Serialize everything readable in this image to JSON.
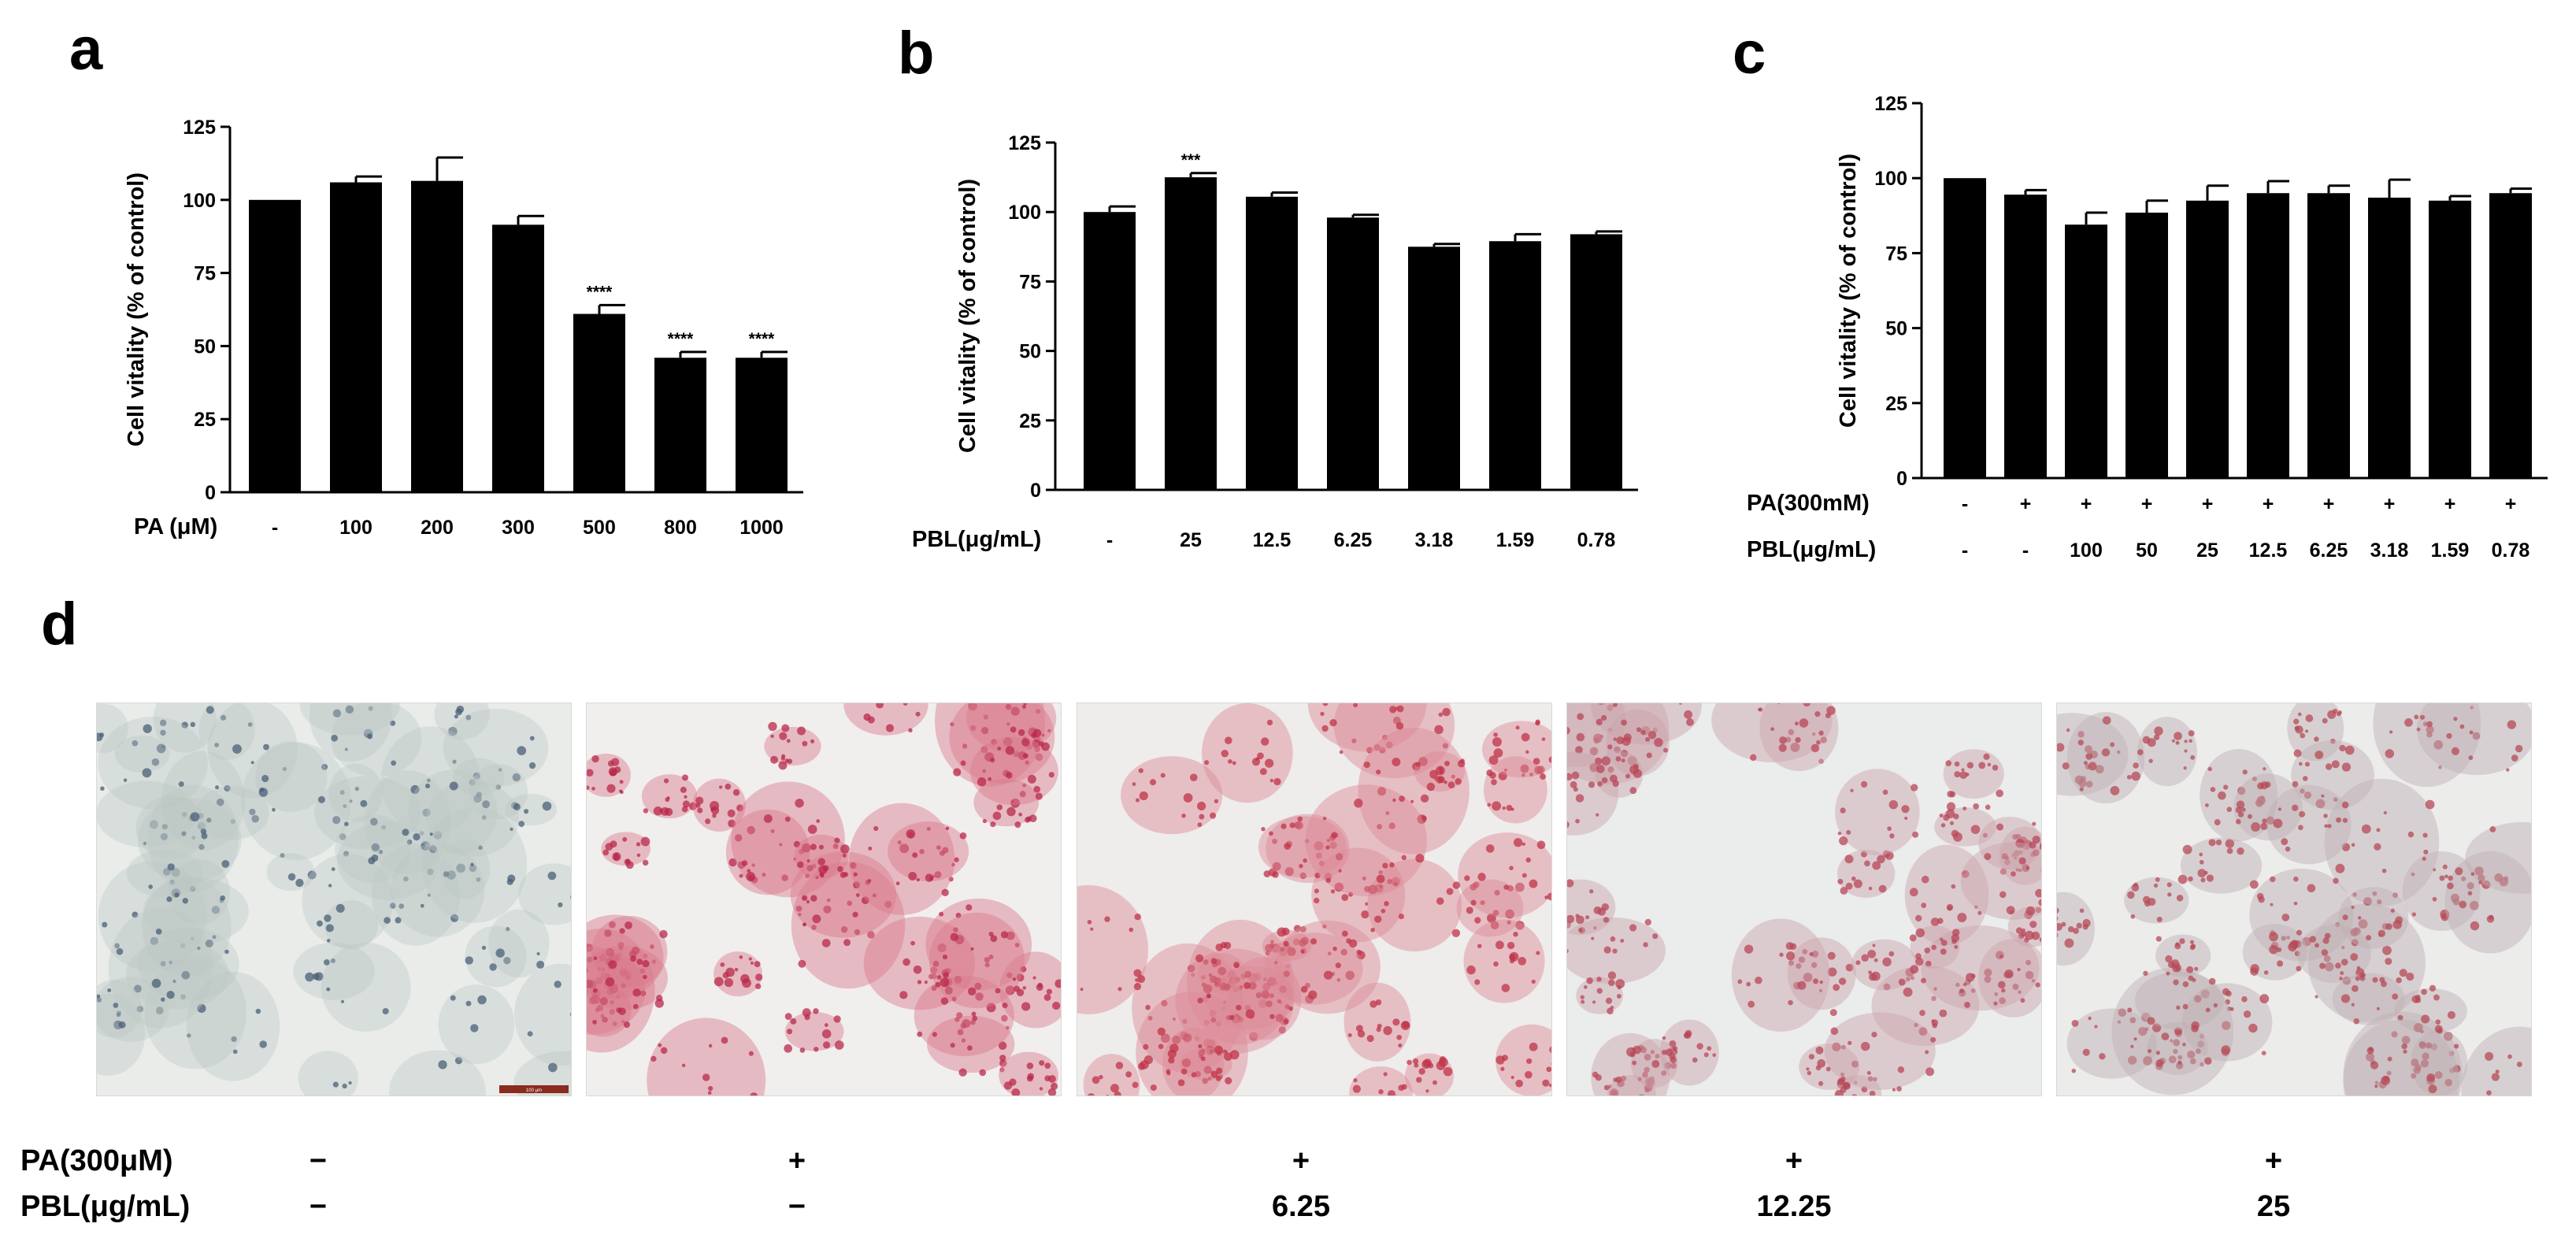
{
  "chart_data": [
    {
      "panel": "a",
      "type": "bar",
      "ylabel": "Cell vitality  (% of control)",
      "ylim": [
        0,
        125
      ],
      "yticks": [
        "0",
        "25",
        "50",
        "75",
        "100",
        "125"
      ],
      "rows": [
        {
          "label": "PA (μM)",
          "values": [
            "-",
            "100",
            "200",
            "300",
            "500",
            "800",
            "1000"
          ]
        }
      ],
      "values": [
        100,
        106,
        106.5,
        91.5,
        61,
        46,
        46
      ],
      "errors": [
        0,
        2,
        8,
        3,
        3,
        2,
        2
      ],
      "significance": [
        "",
        "",
        "",
        "",
        "****",
        "****",
        "****"
      ]
    },
    {
      "panel": "b",
      "type": "bar",
      "ylabel": "Cell vitality  (% of control)",
      "ylim": [
        0,
        125
      ],
      "yticks": [
        "0",
        "25",
        "50",
        "75",
        "100",
        "125"
      ],
      "rows": [
        {
          "label": "PBL(μg/mL)",
          "values": [
            "-",
            "25",
            "12.5",
            "6.25",
            "3.18",
            "1.59",
            "0.78"
          ]
        }
      ],
      "values": [
        100,
        112.5,
        105.5,
        98,
        87.5,
        89.5,
        92
      ],
      "errors": [
        2,
        1.5,
        1.5,
        1,
        1,
        2.5,
        1
      ],
      "significance": [
        "",
        "***",
        "",
        "",
        "",
        "",
        ""
      ]
    },
    {
      "panel": "c",
      "type": "bar",
      "ylabel": "Cell vitality  (% of control)",
      "ylim": [
        0,
        125
      ],
      "yticks": [
        "0",
        "25",
        "50",
        "75",
        "100",
        "125"
      ],
      "rows": [
        {
          "label": "PA(300mM)",
          "values": [
            "-",
            "+",
            "+",
            "+",
            "+",
            "+",
            "+",
            "+",
            "+",
            "+"
          ]
        },
        {
          "label": "PBL(μg/mL)",
          "values": [
            "-",
            "-",
            "100",
            "50",
            "25",
            "12.5",
            "6.25",
            "3.18",
            "1.59",
            "0.78"
          ]
        }
      ],
      "values": [
        100,
        94.5,
        84.5,
        88.5,
        92.5,
        95,
        95,
        93.5,
        92.5,
        95
      ],
      "errors": [
        0,
        1.5,
        4,
        4,
        5,
        4,
        2.5,
        6,
        1.5,
        1.5
      ],
      "significance": [
        "",
        "",
        "",
        "",
        "",
        "",
        "",
        "",
        "",
        ""
      ]
    }
  ],
  "panel_d": {
    "letter": "d",
    "scale_bar_label": "100 μm",
    "rows": [
      {
        "label": "PA(300μM)",
        "values": [
          "−",
          "+",
          "+",
          "+",
          "+"
        ]
      },
      {
        "label": "PBL(μg/mL)",
        "values": [
          "−",
          "−",
          "6.25",
          "12.25",
          "25"
        ]
      }
    ],
    "images": [
      {
        "stain": "control",
        "colors": {
          "bg": "#e9ece8",
          "cell": "#b9c6c2",
          "dot": "#4a5f78"
        }
      },
      {
        "stain": "pa",
        "colors": {
          "bg": "#f1eeee",
          "cell": "#d97a8c",
          "dot": "#b8284a"
        }
      },
      {
        "stain": "pbl-6.25",
        "colors": {
          "bg": "#efecec",
          "cell": "#dc8a96",
          "dot": "#bf3347"
        }
      },
      {
        "stain": "pbl-12.25",
        "colors": {
          "bg": "#ebecec",
          "cell": "#c9a3aa",
          "dot": "#b84558"
        }
      },
      {
        "stain": "pbl-25",
        "colors": {
          "bg": "#ececeb",
          "cell": "#bfb0b3",
          "dot": "#b64a55"
        }
      }
    ]
  },
  "colors": {
    "bar": "#000000",
    "axis": "#000000",
    "scale_bar": "#8b2a1e"
  }
}
